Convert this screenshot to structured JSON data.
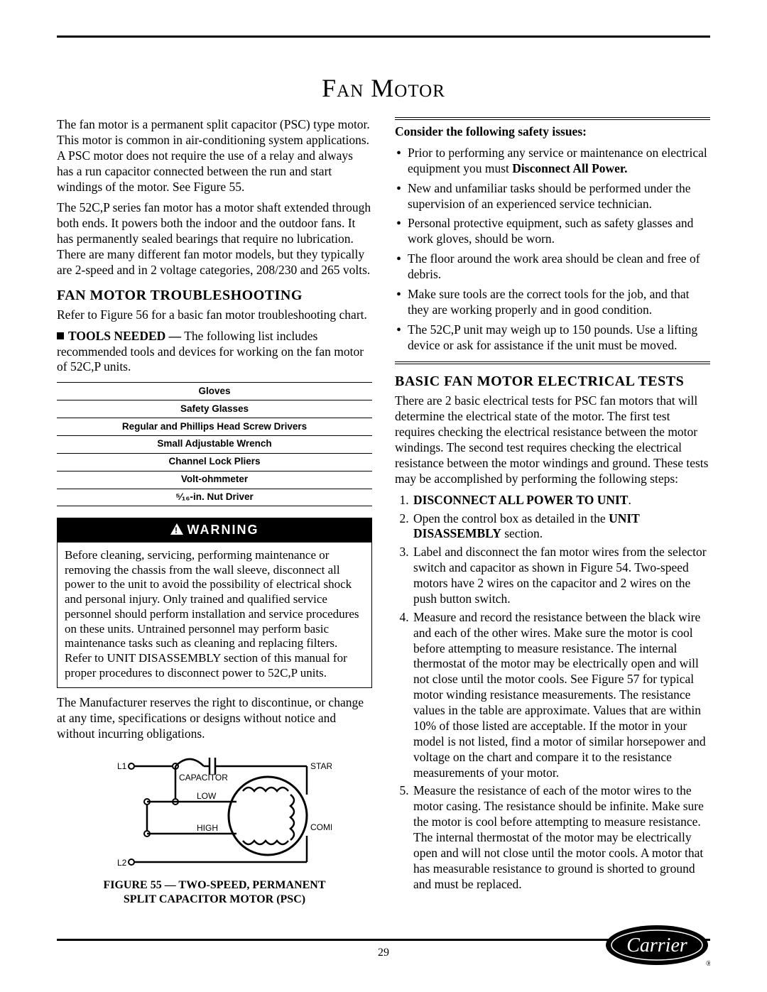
{
  "page_title": "Fan Motor",
  "page_number": "29",
  "left": {
    "intro_p1": "The fan motor is a permanent split capacitor (PSC) type motor. This motor is common in air-conditioning system applications. A PSC motor does not require the use of a relay and always has a run capacitor connected between the run and start windings of the motor. See Figure 55.",
    "intro_p2": "The 52C,P series fan motor has a motor shaft extended through both ends. It powers both the indoor and the outdoor fans. It has permanently sealed bearings that require no lubrication. There are many different fan motor models, but they typically are 2-speed and in 2 voltage categories, 208/230 and 265 volts.",
    "trouble_heading": "FAN MOTOR TROUBLESHOOTING",
    "trouble_p": "Refer to Figure 56 for a basic fan motor troubleshooting chart.",
    "tools_label": "TOOLS NEEDED —",
    "tools_intro": " The following list includes recommended tools and devices for working on the fan motor of 52C,P units.",
    "tools": [
      "Gloves",
      "Safety Glasses",
      "Regular and Phillips Head Screw Drivers",
      "Small Adjustable Wrench",
      "Channel Lock Pliers",
      "Volt-ohmmeter",
      "⁵⁄₁₆-in. Nut Driver"
    ],
    "warning_label": "WARNING",
    "warning_body": "Before cleaning, servicing, performing maintenance or removing the chassis from the wall sleeve, disconnect all power to the unit to avoid the possibility of electrical shock and personal injury. Only trained and qualified service personnel should perform installation and service procedures on these units. Untrained personnel may perform basic maintenance tasks such as cleaning and replacing filters. Refer to UNIT DISASSEMBLY section of this manual for proper procedures to disconnect power to 52C,P units.",
    "disclaimer": "The Manufacturer reserves the right to discontinue, or change at any time, specifications or designs without notice and without incurring obligations.",
    "diagram_labels": {
      "l1": "L1",
      "l2": "L2",
      "capacitor": "CAPACITOR",
      "low": "LOW",
      "high": "HIGH",
      "start": "START",
      "common": "COMMON"
    },
    "fig_caption_line1": "FIGURE 55 — TWO-SPEED, PERMANENT",
    "fig_caption_line2": "SPLIT CAPACITOR MOTOR (PSC)"
  },
  "right": {
    "safety_heading": "Consider the following safety issues:",
    "safety_items": [
      "Prior to performing any service or maintenance on electrical equipment you must <b>Disconnect All Power.</b>",
      "New and unfamiliar tasks should be performed under the supervision of an experienced service technician.",
      "Personal protective equipment, such as safety glasses and work gloves, should be worn.",
      "The floor around the work area should be clean and free of debris.",
      "Make sure tools are the correct tools for the job, and that they are working properly and in good condition.",
      "The 52C,P unit may weigh up to 150 pounds. Use a lifting device or ask for assistance if the unit must be moved."
    ],
    "tests_heading": "BASIC FAN MOTOR ELECTRICAL TESTS",
    "tests_intro": "There are 2 basic electrical tests for PSC fan motors that will determine the electrical state of the motor. The first test requires checking the electrical resistance between the motor windings. The second test requires checking the electrical resistance between the motor windings and ground. These tests may be accomplished by performing the following steps:",
    "steps": [
      "<b>DISCONNECT ALL POWER TO UNIT</b>.",
      "Open the control box as detailed in the <b>UNIT DISASSEMBLY</b> section.",
      "Label and disconnect the fan motor wires from the selector switch and capacitor as shown in Figure 54. Two-speed motors have 2 wires on the capacitor and 2 wires on the push button switch.",
      "Measure and record the resistance between the black wire and each of the other wires. Make sure the motor is cool before attempting to measure resistance. The internal thermostat of the motor may be electrically open and will not close until the motor cools. See Figure 57 for typical motor winding resistance measurements. The resistance values in the table are approximate. Values that are within 10% of those listed are acceptable. If the motor in your model is not listed, find a motor of similar horsepower and voltage on the chart and compare it to the resistance measurements of your motor.",
      "Measure the resistance of each of the motor wires to the motor casing. The resistance should be infinite. Make sure the motor is cool before attempting to measure resistance. The internal thermostat of the motor may be electrically open and will not close until the motor cools. A motor that has measurable resistance to ground is shorted to ground and must be replaced."
    ]
  },
  "logo_text": "Carrier"
}
